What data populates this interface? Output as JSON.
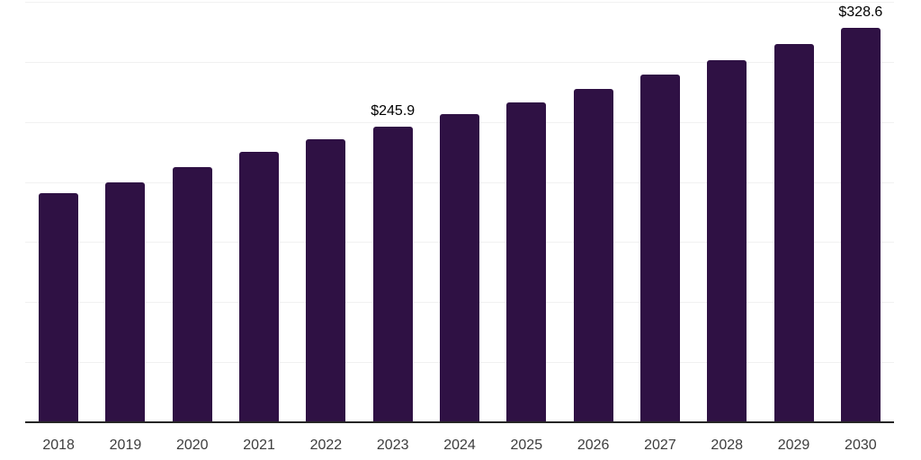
{
  "chart_data": {
    "type": "bar",
    "title": "",
    "xlabel": "",
    "ylabel": "",
    "categories": [
      "2018",
      "2019",
      "2020",
      "2021",
      "2022",
      "2023",
      "2024",
      "2025",
      "2026",
      "2027",
      "2028",
      "2029",
      "2030"
    ],
    "values": [
      190.8,
      199.7,
      212.6,
      225.0,
      235.4,
      245.9,
      256.2,
      265.9,
      277.7,
      289.7,
      301.7,
      315.0,
      328.6
    ],
    "data_labels": [
      {
        "category": "2023",
        "text": "$245.9"
      },
      {
        "category": "2030",
        "text": "$328.6"
      }
    ],
    "ylim": [
      0,
      350
    ],
    "gridline_step": 50,
    "grid": true,
    "legend": false,
    "y_axis_tick_labels_visible": false,
    "colors": {
      "bar": "#2f1144",
      "gridline": "#f1f1f1",
      "axis_line": "#262626",
      "x_label_text": "#3d3d3d",
      "value_label_text": "#000000",
      "background": "#ffffff"
    }
  }
}
